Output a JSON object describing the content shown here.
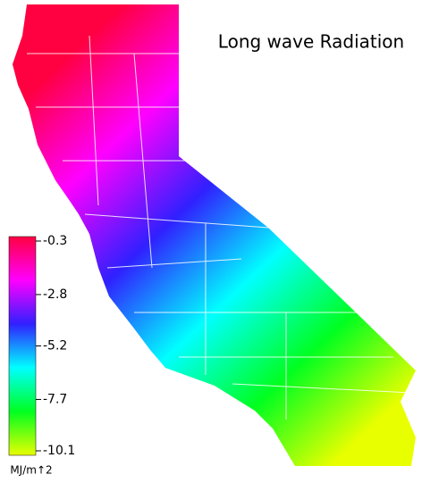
{
  "title": "Long wave Radiation",
  "colorbar": {
    "ticks": [
      -0.3,
      -2.8,
      -5.2,
      -7.7,
      -10.1
    ],
    "unit": "MJ/m↑2",
    "colors": [
      "#ff0040",
      "#ff00ff",
      "#3020ff",
      "#00ffff",
      "#00ff20",
      "#e8ff00"
    ]
  }
}
